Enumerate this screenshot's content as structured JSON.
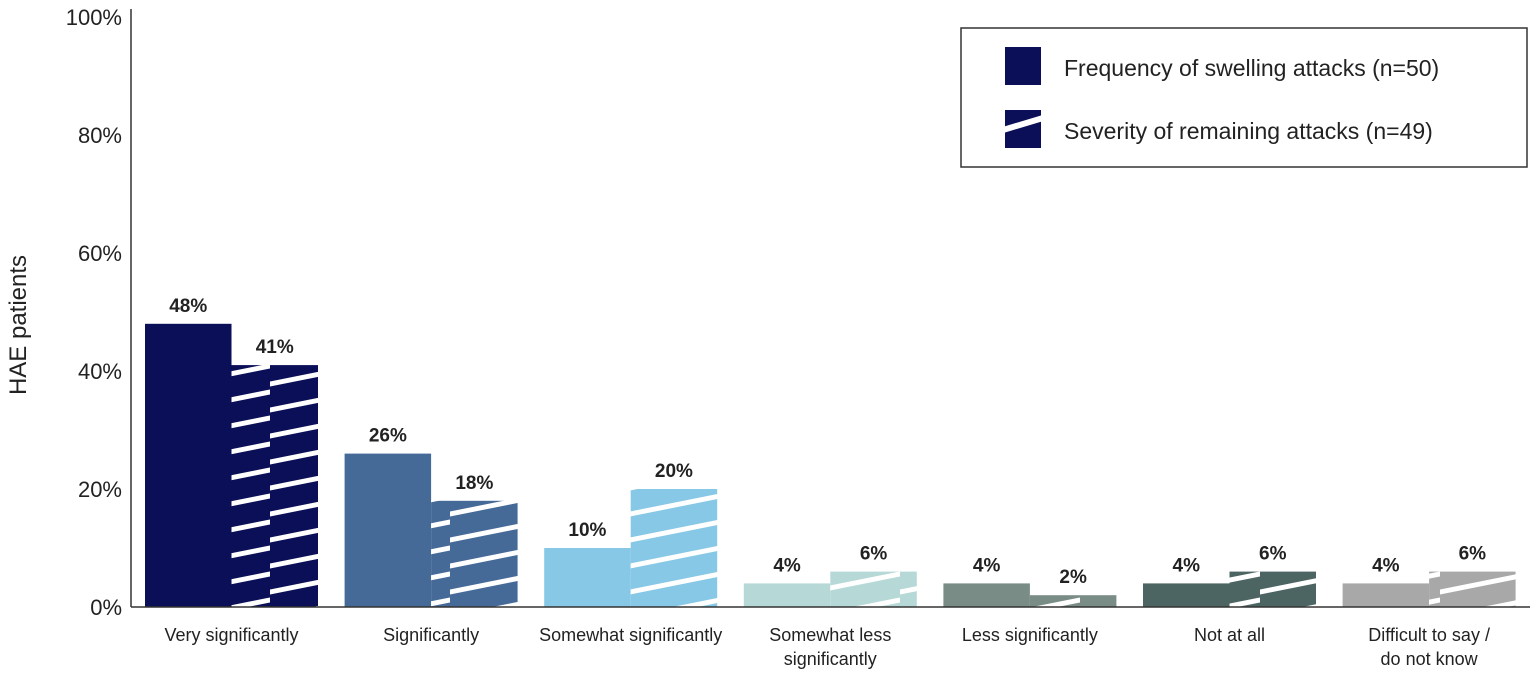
{
  "chart_data": {
    "type": "bar",
    "title": "",
    "xlabel": "",
    "ylabel": "HAE patients",
    "ylim": [
      0,
      100
    ],
    "y_ticks": [
      "0%",
      "20%",
      "40%",
      "60%",
      "80%",
      "100%"
    ],
    "y_tick_values": [
      0,
      20,
      40,
      60,
      80,
      100
    ],
    "grid": false,
    "legend_position": "top-right",
    "categories": [
      [
        "Very significantly"
      ],
      [
        "Significantly"
      ],
      [
        "Somewhat significantly"
      ],
      [
        "Somewhat less",
        "significantly"
      ],
      [
        "Less significantly"
      ],
      [
        "Not at all"
      ],
      [
        "Difficult to say /",
        "do not know"
      ]
    ],
    "category_colors": [
      "#0a0f57",
      "#466a98",
      "#86c8e5",
      "#b6d9d8",
      "#7a8c86",
      "#4c6462",
      "#a8a8a8"
    ],
    "series": [
      {
        "name": "Frequency of swelling attacks (n=50)",
        "pattern": "solid",
        "values": [
          48,
          26,
          10,
          4,
          4,
          4,
          4
        ],
        "labels": [
          "48%",
          "26%",
          "10%",
          "4%",
          "4%",
          "4%",
          "4%"
        ]
      },
      {
        "name": "Severity of remaining attacks (n=49)",
        "pattern": "diagonal-stripes",
        "values": [
          41,
          18,
          20,
          6,
          2,
          6,
          6
        ],
        "labels": [
          "41%",
          "18%",
          "20%",
          "6%",
          "2%",
          "6%",
          "6%"
        ]
      }
    ],
    "legend_color": "#0a0f57"
  }
}
